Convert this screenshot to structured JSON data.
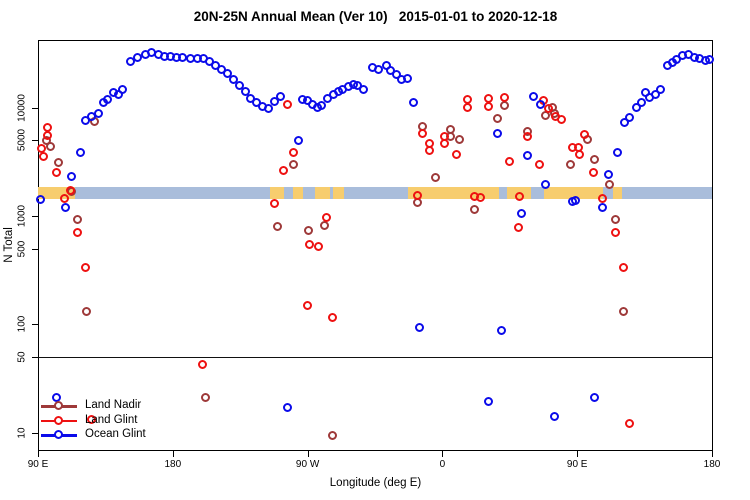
{
  "title": "20N-25N Annual Mean (Ver 10)   2015-01-01 to 2020-12-18",
  "chart_data": {
    "type": "scatter",
    "title": "20N-25N Annual Mean (Ver 10)   2015-01-01 to 2020-12-18",
    "xlabel": "Longitude (deg E)",
    "ylabel": "N Total",
    "x_axis": {
      "note": "longitude axis wraps eastward; continuous coordinate 90..540 deg E (270=90W, 360=0, 450=90E)",
      "range": [
        90,
        540
      ],
      "ticks": [
        {
          "deg": 90,
          "label": "90 E"
        },
        {
          "deg": 180,
          "label": "180"
        },
        {
          "deg": 270,
          "label": "90 W"
        },
        {
          "deg": 360,
          "label": "0"
        },
        {
          "deg": 450,
          "label": "90 E"
        },
        {
          "deg": 540,
          "label": "180"
        }
      ]
    },
    "y_axis": {
      "scale": "log10",
      "range": [
        6.9,
        42400
      ],
      "ticks": [
        10,
        50,
        100,
        500,
        1000,
        5000,
        10000
      ],
      "ref_line": 50
    },
    "map_strip": {
      "description": "world-map band for latitude 20N-25N drawn across the plot",
      "value_range": [
        1440,
        1870
      ],
      "ocean_color": "#A9BDDB",
      "land_color": "#F7CD6E",
      "land_segments_deg": [
        [
          90,
          115
        ],
        [
          245,
          254
        ],
        [
          260,
          267
        ],
        [
          275,
          285
        ],
        [
          287,
          294
        ],
        [
          337,
          398
        ],
        [
          403,
          419
        ],
        [
          428,
          467
        ],
        [
          474,
          480
        ]
      ]
    },
    "legend": {
      "position": "bottom-left"
    },
    "series": [
      {
        "name": "Land Nadir",
        "color": "#9E3939",
        "marker": "open-circle",
        "points": [
          [
            96,
            4930
          ],
          [
            99,
            4350
          ],
          [
            104,
            3090
          ],
          [
            113,
            1670
          ],
          [
            117,
            920
          ],
          [
            123,
            130
          ],
          [
            128,
            7380
          ],
          [
            202,
            21
          ],
          [
            250,
            790
          ],
          [
            261,
            2960
          ],
          [
            271,
            730
          ],
          [
            282,
            810
          ],
          [
            287,
            9.3
          ],
          [
            344,
            1320
          ],
          [
            347,
            6650
          ],
          [
            356,
            2250
          ],
          [
            366,
            6240
          ],
          [
            366,
            5370
          ],
          [
            372,
            5050
          ],
          [
            382,
            1140
          ],
          [
            397,
            7870
          ],
          [
            402,
            10400
          ],
          [
            417,
            5980
          ],
          [
            429,
            8390
          ],
          [
            434,
            9950
          ],
          [
            435,
            8770
          ],
          [
            446,
            2960
          ],
          [
            457,
            5050
          ],
          [
            462,
            3300
          ],
          [
            472,
            1940
          ],
          [
            476,
            920
          ],
          [
            481,
            130
          ]
        ]
      },
      {
        "name": "Land Glint",
        "color": "#EE1111",
        "marker": "open-circle",
        "points": [
          [
            93,
            4170
          ],
          [
            94,
            3520
          ],
          [
            97,
            6500
          ],
          [
            97,
            5500
          ],
          [
            103,
            2500
          ],
          [
            108,
            1440
          ],
          [
            112,
            1710
          ],
          [
            117,
            700
          ],
          [
            122,
            332
          ],
          [
            126,
            13
          ],
          [
            200,
            42
          ],
          [
            248,
            1290
          ],
          [
            254,
            2610
          ],
          [
            257,
            10600
          ],
          [
            261,
            3820
          ],
          [
            270,
            148
          ],
          [
            272,
            541
          ],
          [
            278,
            519
          ],
          [
            283,
            960
          ],
          [
            287,
            115
          ],
          [
            344,
            1530
          ],
          [
            347,
            5730
          ],
          [
            352,
            4630
          ],
          [
            352,
            3990
          ],
          [
            362,
            5370
          ],
          [
            362,
            4630
          ],
          [
            370,
            3670
          ],
          [
            377,
            11800
          ],
          [
            377,
            9950
          ],
          [
            382,
            1500
          ],
          [
            386,
            1470
          ],
          [
            391,
            12000
          ],
          [
            391,
            10200
          ],
          [
            402,
            12300
          ],
          [
            405,
            3160
          ],
          [
            411,
            780
          ],
          [
            412,
            1500
          ],
          [
            417,
            5370
          ],
          [
            425,
            2960
          ],
          [
            428,
            11600
          ],
          [
            431,
            9750
          ],
          [
            436,
            8220
          ],
          [
            440,
            7710
          ],
          [
            447,
            4260
          ],
          [
            451,
            4260
          ],
          [
            452,
            3670
          ],
          [
            455,
            5610
          ],
          [
            461,
            2500
          ],
          [
            467,
            1440
          ],
          [
            476,
            700
          ],
          [
            481,
            332
          ],
          [
            485,
            12
          ]
        ]
      },
      {
        "name": "Ocean Glint",
        "color": "#0B0BEA",
        "marker": "open-circle",
        "points": [
          [
            92,
            1410
          ],
          [
            103,
            21
          ],
          [
            109,
            1190
          ],
          [
            113,
            2300
          ],
          [
            119,
            3820
          ],
          [
            122,
            7550
          ],
          [
            126,
            8220
          ],
          [
            131,
            8770
          ],
          [
            134,
            11100
          ],
          [
            137,
            11800
          ],
          [
            141,
            13700
          ],
          [
            144,
            13100
          ],
          [
            147,
            14600
          ],
          [
            152,
            26500
          ],
          [
            157,
            28800
          ],
          [
            162,
            30700
          ],
          [
            166,
            32100
          ],
          [
            171,
            30700
          ],
          [
            175,
            29400
          ],
          [
            179,
            29400
          ],
          [
            183,
            28800
          ],
          [
            187,
            28800
          ],
          [
            192,
            28300
          ],
          [
            197,
            28300
          ],
          [
            201,
            28300
          ],
          [
            205,
            26500
          ],
          [
            209,
            24300
          ],
          [
            213,
            22300
          ],
          [
            217,
            20500
          ],
          [
            221,
            18100
          ],
          [
            225,
            15900
          ],
          [
            229,
            14000
          ],
          [
            232,
            12000
          ],
          [
            236,
            11100
          ],
          [
            240,
            10200
          ],
          [
            244,
            9750
          ],
          [
            248,
            11300
          ],
          [
            252,
            12600
          ],
          [
            257,
            17
          ],
          [
            264,
            4930
          ],
          [
            267,
            11800
          ],
          [
            270,
            11600
          ],
          [
            274,
            10600
          ],
          [
            277,
            9950
          ],
          [
            280,
            10400
          ],
          [
            284,
            12000
          ],
          [
            288,
            13100
          ],
          [
            291,
            14000
          ],
          [
            294,
            14600
          ],
          [
            298,
            15600
          ],
          [
            301,
            16200
          ],
          [
            304,
            15900
          ],
          [
            308,
            14600
          ],
          [
            314,
            23300
          ],
          [
            318,
            22300
          ],
          [
            323,
            24300
          ],
          [
            326,
            21900
          ],
          [
            330,
            20100
          ],
          [
            333,
            18100
          ],
          [
            337,
            18400
          ],
          [
            341,
            11100
          ],
          [
            345,
            93
          ],
          [
            391,
            19
          ],
          [
            397,
            5730
          ],
          [
            400,
            87
          ],
          [
            413,
            1050
          ],
          [
            417,
            3590
          ],
          [
            421,
            12600
          ],
          [
            426,
            10600
          ],
          [
            429,
            1940
          ],
          [
            435,
            14
          ],
          [
            447,
            1350
          ],
          [
            449,
            1380
          ],
          [
            462,
            21
          ],
          [
            467,
            1190
          ],
          [
            471,
            2390
          ],
          [
            477,
            3820
          ],
          [
            482,
            7230
          ],
          [
            485,
            8050
          ],
          [
            490,
            9950
          ],
          [
            493,
            11100
          ],
          [
            496,
            13700
          ],
          [
            499,
            12300
          ],
          [
            503,
            13100
          ],
          [
            506,
            14600
          ],
          [
            511,
            24300
          ],
          [
            514,
            25900
          ],
          [
            517,
            27600
          ],
          [
            521,
            30100
          ],
          [
            525,
            30700
          ],
          [
            529,
            28800
          ],
          [
            532,
            28300
          ],
          [
            536,
            27000
          ],
          [
            539,
            27600
          ]
        ]
      }
    ]
  }
}
